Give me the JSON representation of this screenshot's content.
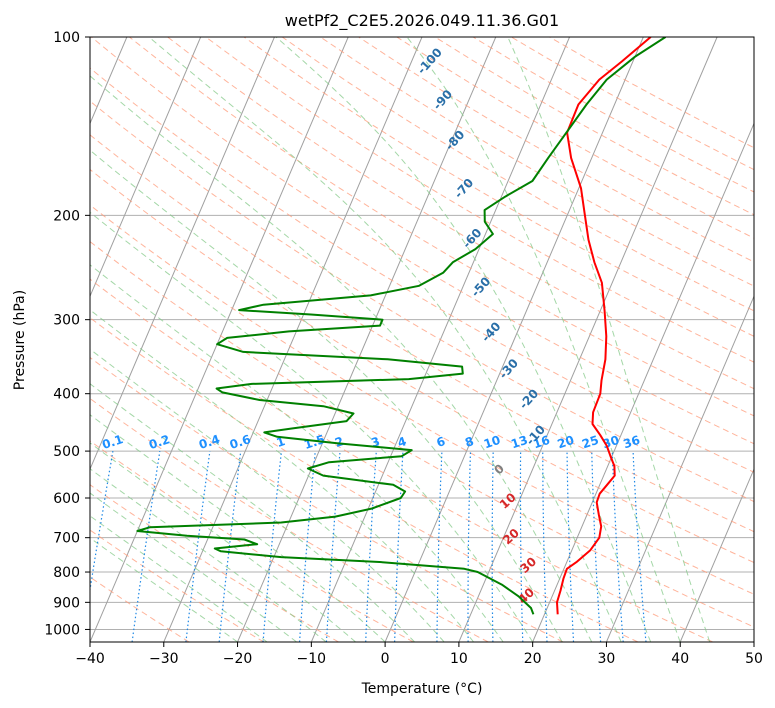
{
  "chart_data": {
    "type": "skew-t",
    "title": "wetPf2_C2E5.2026.049.11.36.G01",
    "xlabel": "Temperature (°C)",
    "ylabel": "Pressure (hPa)",
    "xlim": [
      -40,
      50
    ],
    "ylim": [
      1050,
      100
    ],
    "y_scale": "log",
    "x_ticks": [
      "−40",
      "−30",
      "−20",
      "−10",
      "0",
      "10",
      "20",
      "30",
      "40",
      "50"
    ],
    "y_ticks": [
      "100",
      "200",
      "300",
      "400",
      "500",
      "600",
      "700",
      "800",
      "900",
      "1000"
    ],
    "x_tick_values": [
      -40,
      -30,
      -20,
      -10,
      0,
      10,
      20,
      30,
      40,
      50
    ],
    "y_tick_values": [
      100,
      200,
      300,
      400,
      500,
      600,
      700,
      800,
      900,
      1000
    ],
    "grid": true,
    "colors": {
      "temperature": "#ff0000",
      "dewpoint": "#008000",
      "dry_adiabat": "#ff9b7a",
      "moist_adiabat": "#86c98a",
      "mixing_ratio": "#1e88e5",
      "isotherm": "#a0a0a0",
      "label_blue": "#2a6fa8",
      "label_red": "#d62728",
      "label_mixing": "#1e90ff"
    },
    "series": [
      {
        "key": "temperature",
        "points": [
          [
            943,
            21.8
          ],
          [
            900,
            21
          ],
          [
            860,
            20.8
          ],
          [
            820,
            20.5
          ],
          [
            790,
            20.4
          ],
          [
            770,
            21.3
          ],
          [
            735,
            22.5
          ],
          [
            700,
            23
          ],
          [
            670,
            22.6
          ],
          [
            640,
            21.6
          ],
          [
            610,
            20.6
          ],
          [
            590,
            20.5
          ],
          [
            570,
            21
          ],
          [
            550,
            21.5
          ],
          [
            530,
            20.9
          ],
          [
            510,
            19.8
          ],
          [
            490,
            18.7
          ],
          [
            470,
            17.2
          ],
          [
            450,
            15.5
          ],
          [
            430,
            14.9
          ],
          [
            400,
            14.8
          ],
          [
            380,
            14.2
          ],
          [
            350,
            13.5
          ],
          [
            320,
            12.3
          ],
          [
            290,
            10.6
          ],
          [
            260,
            8.6
          ],
          [
            240,
            6.4
          ],
          [
            220,
            4.3
          ],
          [
            200,
            2.4
          ],
          [
            180,
            0.3
          ],
          [
            160,
            -2.8
          ],
          [
            145,
            -4.8
          ],
          [
            130,
            -4.9
          ],
          [
            118,
            -3.5
          ],
          [
            110,
            -1.5
          ],
          [
            100,
            1
          ]
        ]
      },
      {
        "key": "dewpoint",
        "points": [
          [
            943,
            18.5
          ],
          [
            920,
            17.8
          ],
          [
            880,
            15.5
          ],
          [
            840,
            12.5
          ],
          [
            800,
            8.5
          ],
          [
            790,
            6.5
          ],
          [
            770,
            -5
          ],
          [
            755,
            -19
          ],
          [
            738,
            -27.5
          ],
          [
            730,
            -28.5
          ],
          [
            718,
            -23
          ],
          [
            705,
            -25
          ],
          [
            695,
            -33
          ],
          [
            682,
            -40
          ],
          [
            672,
            -38.5
          ],
          [
            660,
            -21
          ],
          [
            645,
            -14
          ],
          [
            625,
            -9.5
          ],
          [
            600,
            -6.2
          ],
          [
            585,
            -6
          ],
          [
            570,
            -8
          ],
          [
            550,
            -18
          ],
          [
            535,
            -20.5
          ],
          [
            522,
            -18
          ],
          [
            510,
            -8.5
          ],
          [
            498,
            -7.5
          ],
          [
            485,
            -18
          ],
          [
            473,
            -26.5
          ],
          [
            465,
            -28.5
          ],
          [
            458,
            -25
          ],
          [
            445,
            -18
          ],
          [
            432,
            -17.5
          ],
          [
            420,
            -22
          ],
          [
            410,
            -31
          ],
          [
            398,
            -36.5
          ],
          [
            392,
            -37.5
          ],
          [
            385,
            -33
          ],
          [
            378,
            -12
          ],
          [
            370,
            -5
          ],
          [
            360,
            -5.5
          ],
          [
            350,
            -16
          ],
          [
            340,
            -36
          ],
          [
            330,
            -40
          ],
          [
            322,
            -39
          ],
          [
            314,
            -31
          ],
          [
            307,
            -19
          ],
          [
            300,
            -19
          ],
          [
            294,
            -29
          ],
          [
            289,
            -39
          ],
          [
            283,
            -36
          ],
          [
            273,
            -22
          ],
          [
            263,
            -16
          ],
          [
            250,
            -13.5
          ],
          [
            240,
            -12.8
          ],
          [
            228,
            -10.5
          ],
          [
            215,
            -9
          ],
          [
            205,
            -10.8
          ],
          [
            196,
            -11.5
          ],
          [
            186,
            -9.5
          ],
          [
            175,
            -6.7
          ],
          [
            160,
            -5.9
          ],
          [
            145,
            -4.9
          ],
          [
            130,
            -3.8
          ],
          [
            118,
            -2.5
          ],
          [
            108,
            0
          ],
          [
            100,
            3
          ]
        ]
      }
    ],
    "dry_adiabat_labels": [
      {
        "text": "-100",
        "p": 111,
        "t": -27
      },
      {
        "text": "-90",
        "p": 129,
        "t": -23
      },
      {
        "text": "-80",
        "p": 151,
        "t": -19
      },
      {
        "text": "-70",
        "p": 182,
        "t": -15
      },
      {
        "text": "-60",
        "p": 221,
        "t": -11
      },
      {
        "text": "-50",
        "p": 267,
        "t": -7
      },
      {
        "text": "-40",
        "p": 318,
        "t": -3
      },
      {
        "text": "-30",
        "p": 367,
        "t": 1.5
      },
      {
        "text": "-20",
        "p": 413,
        "t": 6
      },
      {
        "text": "-10",
        "p": 475,
        "t": 9
      }
    ],
    "moist_adiabat_labels": [
      {
        "text": "0",
        "p": 543,
        "t": 6
      },
      {
        "text": "10",
        "p": 614,
        "t": 9
      },
      {
        "text": "20",
        "p": 705,
        "t": 11.5
      },
      {
        "text": "30",
        "p": 788,
        "t": 15.5
      },
      {
        "text": "40",
        "p": 888,
        "t": 17
      }
    ],
    "mixing_ratio_labels": [
      "0.1",
      "0.2",
      "0.4",
      "0.6",
      "1",
      "1.5",
      "2",
      "3",
      "4",
      "6",
      "8",
      "10",
      "13",
      "16",
      "20",
      "25",
      "30",
      "36"
    ],
    "mixing_ratio_values": [
      0.1,
      0.2,
      0.4,
      0.6,
      1,
      1.5,
      2,
      3,
      4,
      6,
      8,
      10,
      13,
      16,
      20,
      25,
      30,
      36
    ]
  }
}
